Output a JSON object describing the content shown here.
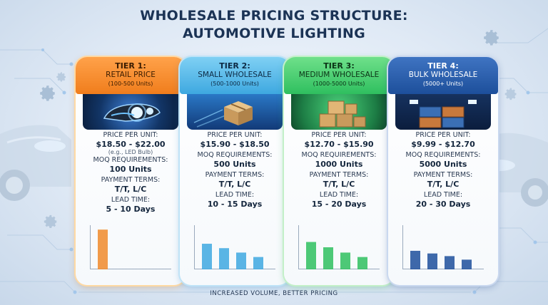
{
  "title_line1": "WHOLESALE PRICING STRUCTURE:",
  "title_line2": "AUTOMOTIVE LIGHTING",
  "tiers": [
    {
      "tier": "TIER 1:",
      "name": "RETAIL PRICE",
      "range": "(100-500 Units)",
      "price_label": "PRICE PER UNIT:",
      "price": "$18.50 - $22.00",
      "price_note": "(e.g., LED Bulb)",
      "moq_label": "MOQ REQUIREMENTS:",
      "moq": "100 Units",
      "payment_label": "PAYMENT TERMS:",
      "payment": "T/T, L/C",
      "lead_label": "LEAD TIME:",
      "lead": "5 - 10 Days",
      "accent": "#f08a2a",
      "bars": [
        0.9
      ]
    },
    {
      "tier": "TIER 2:",
      "name": "SMALL WHOLESALE",
      "range": "(500-1000 Units)",
      "price_label": "PRICE PER UNIT:",
      "price": "$15.90 - $18.50",
      "moq_label": "MOQ REQUIREMENTS:",
      "moq": "500 Units",
      "payment_label": "PAYMENT TERMS:",
      "payment": "T/T, L/C",
      "lead_label": "LEAD TIME:",
      "lead": "10 - 15 Days",
      "accent": "#3ea8e0",
      "bars": [
        0.58,
        0.48,
        0.38,
        0.28
      ]
    },
    {
      "tier": "TIER 3:",
      "name": "MEDIUM WHOLESALE",
      "range": "(1000-5000 Units)",
      "price_label": "PRICE PER UNIT:",
      "price": "$12.70 - $15.90",
      "moq_label": "MOQ REQUIREMENTS:",
      "moq": "1000 Units",
      "payment_label": "PAYMENT TERMS:",
      "payment": "T/T, L/C",
      "lead_label": "LEAD TIME:",
      "lead": "15 - 20 Days",
      "accent": "#2fbf5f",
      "bars": [
        0.62,
        0.5,
        0.38,
        0.28
      ]
    },
    {
      "tier": "TIER 4:",
      "name": "BULK WHOLESALE",
      "range": "(5000+ Units)",
      "price_label": "PRICE PER UNIT:",
      "price": "$9.99 - $12.70",
      "moq_label": "MOQ REQUIREMENTS:",
      "moq": "5000 Units",
      "payment_label": "PAYMENT TERMS:",
      "payment": "T/T, L/C",
      "lead_label": "LEAD TIME:",
      "lead": "20 - 30 Days",
      "accent": "#1d4f9b",
      "bars": [
        0.42,
        0.36,
        0.3,
        0.22
      ]
    }
  ],
  "footer": "INCREASED VOLUME, BETTER PRICING",
  "icons": [
    "headlight-icon",
    "box-icon",
    "boxes-icon",
    "container-icon",
    "gear-icon",
    "car-icon"
  ]
}
